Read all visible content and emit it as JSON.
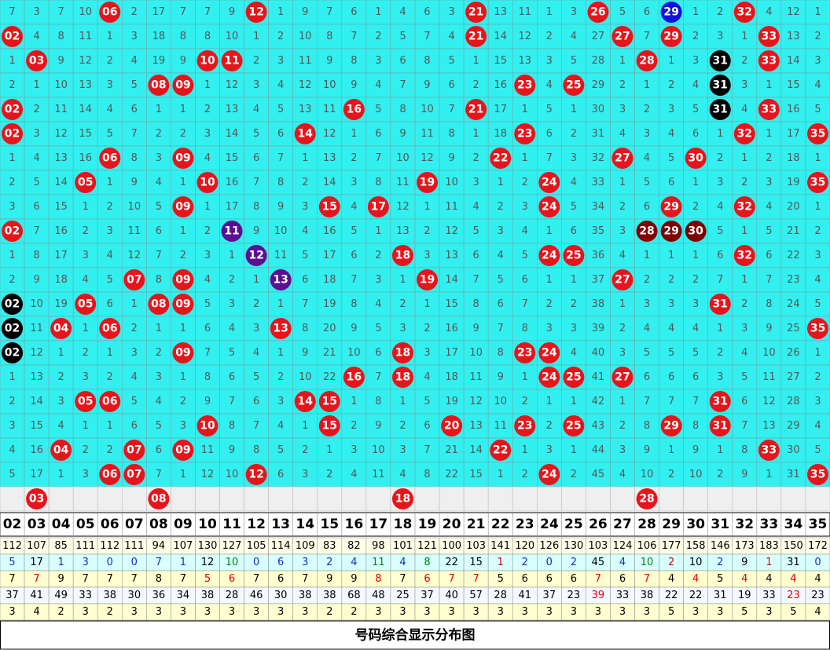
{
  "grid": {
    "rows": [
      [
        "7",
        "3",
        "7",
        "10",
        "06",
        "2",
        "17",
        "7",
        "7",
        "9",
        "12",
        "1",
        "9",
        "7",
        "6",
        "1",
        "4",
        "6",
        "3",
        "21",
        "13",
        "11",
        "1",
        "3",
        "26",
        "5",
        "6",
        {
          "text": "29",
          "color": "#1010e0"
        },
        "1",
        "2",
        "32",
        "4",
        "12",
        "1"
      ],
      [
        "02",
        "4",
        "8",
        "11",
        "1",
        "3",
        "18",
        "8",
        "8",
        "10",
        "1",
        "2",
        "10",
        "8",
        "7",
        "2",
        "5",
        "7",
        "4",
        "21",
        "14",
        "12",
        "2",
        "4",
        "27",
        "27",
        "7",
        "29",
        "2",
        "3",
        "1",
        "33",
        "13",
        "2"
      ],
      [
        "1",
        "03",
        "9",
        "12",
        "2",
        "4",
        "19",
        "9",
        "10",
        "11",
        "2",
        "3",
        "11",
        "9",
        "8",
        "3",
        "6",
        "8",
        "5",
        "1",
        "15",
        "13",
        "3",
        "5",
        "28",
        "1",
        "28",
        "1",
        "3",
        {
          "text": "31",
          "color": "#000000"
        },
        "2",
        "33",
        "14",
        "3"
      ],
      [
        "2",
        "1",
        "10",
        "13",
        "3",
        "5",
        "08",
        "09",
        "1",
        "12",
        "3",
        "4",
        "12",
        "10",
        "9",
        "4",
        "7",
        "9",
        "6",
        "2",
        "16",
        "23",
        "4",
        "25",
        "29",
        "2",
        "1",
        "2",
        "4",
        {
          "text": "31",
          "color": "#000000"
        },
        "3",
        "1",
        "15",
        "4"
      ],
      [
        "02",
        "2",
        "11",
        "14",
        "4",
        "6",
        "1",
        "1",
        "2",
        "13",
        "4",
        "5",
        "13",
        "11",
        "16",
        "5",
        "8",
        "10",
        "7",
        "21",
        "17",
        "1",
        "5",
        "1",
        "30",
        "3",
        "2",
        "3",
        "5",
        {
          "text": "31",
          "color": "#000000"
        },
        "4",
        "33",
        "16",
        "5"
      ],
      [
        "02",
        "3",
        "12",
        "15",
        "5",
        "7",
        "2",
        "2",
        "3",
        "14",
        "5",
        "6",
        "14",
        "12",
        "1",
        "6",
        "9",
        "11",
        "8",
        "1",
        "18",
        "23",
        "6",
        "2",
        "31",
        "4",
        "3",
        "4",
        "6",
        "1",
        "32",
        "1",
        "17",
        "35"
      ],
      [
        "1",
        "4",
        "13",
        "16",
        "06",
        "8",
        "3",
        "09",
        "4",
        "15",
        "6",
        "7",
        "1",
        "13",
        "2",
        "7",
        "10",
        "12",
        "9",
        "2",
        "22",
        "1",
        "7",
        "3",
        "32",
        "27",
        "4",
        "5",
        "30",
        "2",
        "1",
        "2",
        "18",
        "1"
      ],
      [
        "2",
        "5",
        "14",
        "05",
        "1",
        "9",
        "4",
        "1",
        "10",
        "16",
        "7",
        "8",
        "2",
        "14",
        "3",
        "8",
        "11",
        "19",
        "10",
        "3",
        "1",
        "2",
        "24",
        "4",
        "33",
        "1",
        "5",
        "6",
        "1",
        "3",
        "2",
        "3",
        "19",
        "35"
      ],
      [
        "3",
        "6",
        "15",
        "1",
        "2",
        "10",
        "5",
        "09",
        "1",
        "17",
        "8",
        "9",
        "3",
        "15",
        "4",
        "17",
        "12",
        "1",
        "11",
        "4",
        "2",
        "3",
        "24",
        "5",
        "34",
        "2",
        "6",
        "29",
        "2",
        "4",
        "32",
        "4",
        "20",
        "1"
      ],
      [
        "02",
        "7",
        "16",
        "2",
        "3",
        "11",
        "6",
        "1",
        "2",
        {
          "text": "11",
          "color": "#5a1090"
        },
        "9",
        "10",
        "4",
        "16",
        "5",
        "1",
        "13",
        "2",
        "12",
        "5",
        "3",
        "4",
        "1",
        "6",
        "35",
        "3",
        {
          "text": "28",
          "color": "#800000"
        },
        {
          "text": "29",
          "color": "#800000"
        },
        {
          "text": "30",
          "color": "#800000"
        },
        "5",
        "1",
        "5",
        "21",
        "2"
      ],
      [
        "1",
        "8",
        "17",
        "3",
        "4",
        "12",
        "7",
        "2",
        "3",
        "1",
        {
          "text": "12",
          "color": "#5a1090"
        },
        "11",
        "5",
        "17",
        "6",
        "2",
        "18",
        "3",
        "13",
        "6",
        "4",
        "5",
        "24",
        "25",
        "36",
        "4",
        "1",
        "1",
        "1",
        "6",
        "32",
        "6",
        "22",
        "3"
      ],
      [
        "2",
        "9",
        "18",
        "4",
        "5",
        "07",
        "8",
        "09",
        "4",
        "2",
        "1",
        {
          "text": "13",
          "color": "#5a1090"
        },
        "6",
        "18",
        "7",
        "3",
        "1",
        "19",
        "14",
        "7",
        "5",
        "6",
        "1",
        "1",
        "37",
        "27",
        "2",
        "2",
        "2",
        "7",
        "1",
        "7",
        "23",
        "4"
      ],
      [
        {
          "text": "02",
          "color": "#000000"
        },
        "10",
        "19",
        "05",
        "6",
        "1",
        "08",
        "09",
        "5",
        "3",
        "2",
        "1",
        "7",
        "19",
        "8",
        "4",
        "2",
        "1",
        "15",
        "8",
        "6",
        "7",
        "2",
        "2",
        "38",
        "1",
        "3",
        "3",
        "3",
        "31",
        "2",
        "8",
        "24",
        "5"
      ],
      [
        {
          "text": "02",
          "color": "#000000"
        },
        "11",
        "04",
        "1",
        "06",
        "2",
        "1",
        "1",
        "6",
        "4",
        "3",
        "13",
        "8",
        "20",
        "9",
        "5",
        "3",
        "2",
        "16",
        "9",
        "7",
        "8",
        "3",
        "3",
        "39",
        "2",
        "4",
        "4",
        "4",
        "1",
        "3",
        "9",
        "25",
        "35"
      ],
      [
        {
          "text": "02",
          "color": "#000000"
        },
        "12",
        "1",
        "2",
        "1",
        "3",
        "2",
        "09",
        "7",
        "5",
        "4",
        "1",
        "9",
        "21",
        "10",
        "6",
        "18",
        "3",
        "17",
        "10",
        "8",
        "23",
        "24",
        "4",
        "40",
        "3",
        "5",
        "5",
        "5",
        "2",
        "4",
        "10",
        "26",
        "1"
      ],
      [
        "1",
        "13",
        "2",
        "3",
        "2",
        "4",
        "3",
        "1",
        "8",
        "6",
        "5",
        "2",
        "10",
        "22",
        "16",
        "7",
        "18",
        "4",
        "18",
        "11",
        "9",
        "1",
        "24",
        "25",
        "41",
        "27",
        "6",
        "6",
        "6",
        "3",
        "5",
        "11",
        "27",
        "2"
      ],
      [
        "2",
        "14",
        "3",
        "05",
        "06",
        "5",
        "4",
        "2",
        "9",
        "7",
        "6",
        "3",
        "14",
        "15",
        "1",
        "8",
        "1",
        "5",
        "19",
        "12",
        "10",
        "2",
        "1",
        "1",
        "42",
        "1",
        "7",
        "7",
        "7",
        "31",
        "6",
        "12",
        "28",
        "3"
      ],
      [
        "3",
        "15",
        "4",
        "1",
        "1",
        "6",
        "5",
        "3",
        "10",
        "8",
        "7",
        "4",
        "1",
        "15",
        "2",
        "9",
        "2",
        "6",
        "20",
        "13",
        "11",
        "23",
        "2",
        "25",
        "43",
        "2",
        "8",
        "29",
        "8",
        "31",
        "7",
        "13",
        "29",
        "4"
      ],
      [
        "4",
        "16",
        "04",
        "2",
        "2",
        "07",
        "6",
        "09",
        "11",
        "9",
        "8",
        "5",
        "2",
        "1",
        "3",
        "10",
        "3",
        "7",
        "21",
        "14",
        "22",
        "1",
        "3",
        "1",
        "44",
        "3",
        "9",
        "1",
        "9",
        "1",
        "8",
        "33",
        "30",
        "5"
      ],
      [
        "5",
        "17",
        "1",
        "3",
        "06",
        "07",
        "7",
        "1",
        "12",
        "10",
        "12",
        "6",
        "3",
        "2",
        "4",
        "11",
        "4",
        "8",
        "22",
        "15",
        "1",
        "2",
        "24",
        "2",
        "45",
        "4",
        "10",
        "2",
        "10",
        "2",
        "9",
        "1",
        "31",
        "35"
      ]
    ],
    "cell_color": "#33f0f0",
    "ball_color": "#e8141b"
  },
  "draw_row": [
    "03",
    "08",
    "18",
    "28"
  ],
  "header": [
    "02",
    "03",
    "04",
    "05",
    "06",
    "07",
    "08",
    "09",
    "10",
    "11",
    "12",
    "13",
    "14",
    "15",
    "16",
    "17",
    "18",
    "19",
    "20",
    "21",
    "22",
    "23",
    "24",
    "25",
    "26",
    "27",
    "28",
    "29",
    "30",
    "31",
    "32",
    "33",
    "34",
    "35"
  ],
  "stats": [
    {
      "background": "#ffffe8",
      "color": "#000000",
      "cells": [
        "112",
        "107",
        "85",
        "111",
        "112",
        "111",
        "94",
        "107",
        "130",
        "127",
        "105",
        "114",
        "109",
        "83",
        "82",
        "98",
        "101",
        "121",
        "100",
        "103",
        "141",
        "120",
        "126",
        "130",
        "103",
        "124",
        "106",
        "177",
        "158",
        "146",
        "173",
        "183",
        "150",
        "172"
      ]
    },
    {
      "background": "#d8ffff",
      "color": "#1030c0",
      "cells": [
        "5",
        {
          "text": "17",
          "color": "#000000"
        },
        "1",
        "3",
        "0",
        "0",
        "7",
        "1",
        {
          "text": "12",
          "color": "#000000"
        },
        {
          "text": "10",
          "color": "#008800"
        },
        "0",
        "6",
        "3",
        "2",
        "4",
        {
          "text": "11",
          "color": "#008800"
        },
        "4",
        {
          "text": "8",
          "color": "#008800"
        },
        {
          "text": "22",
          "color": "#000000"
        },
        {
          "text": "15",
          "color": "#000000"
        },
        {
          "text": "1",
          "color": "#e00000"
        },
        "2",
        "0",
        "2",
        {
          "text": "45",
          "color": "#000000"
        },
        "4",
        {
          "text": "10",
          "color": "#008800"
        },
        {
          "text": "2",
          "color": "#e00000"
        },
        {
          "text": "10",
          "color": "#000000"
        },
        "2",
        {
          "text": "9",
          "color": "#000000"
        },
        {
          "text": "1",
          "color": "#e00000"
        },
        {
          "text": "31",
          "color": "#000000"
        },
        "0"
      ]
    },
    {
      "background": "#ffffd0",
      "color": "#000000",
      "cells": [
        "7",
        {
          "text": "7",
          "color": "#e00000"
        },
        "9",
        "7",
        "7",
        "7",
        "8",
        "7",
        {
          "text": "5",
          "color": "#e00000"
        },
        {
          "text": "6",
          "color": "#e00000"
        },
        "7",
        "6",
        "7",
        "9",
        "9",
        {
          "text": "8",
          "color": "#e00000"
        },
        "7",
        {
          "text": "6",
          "color": "#e00000"
        },
        {
          "text": "7",
          "color": "#e00000"
        },
        {
          "text": "7",
          "color": "#e00000"
        },
        "5",
        "6",
        "6",
        "6",
        {
          "text": "7",
          "color": "#e00000"
        },
        "6",
        {
          "text": "7",
          "color": "#e00000"
        },
        "4",
        {
          "text": "4",
          "color": "#e00000"
        },
        "5",
        {
          "text": "4",
          "color": "#e00000"
        },
        "4",
        {
          "text": "4",
          "color": "#e00000"
        },
        "4"
      ]
    },
    {
      "background": "#f4f8ff",
      "color": "#000000",
      "cells": [
        "37",
        "41",
        "49",
        "33",
        "38",
        "30",
        "36",
        "34",
        "38",
        "28",
        "46",
        "30",
        "38",
        "38",
        "68",
        "48",
        "25",
        "37",
        "40",
        "57",
        "28",
        "41",
        "37",
        "23",
        {
          "text": "39",
          "color": "#e00000"
        },
        "33",
        "38",
        "22",
        "22",
        "31",
        "19",
        "33",
        {
          "text": "23",
          "color": "#e00000"
        },
        "23"
      ]
    },
    {
      "background": "#ffffd0",
      "color": "#000000",
      "cells": [
        "3",
        "4",
        "2",
        "3",
        "2",
        "3",
        "3",
        "3",
        "3",
        "3",
        "3",
        "3",
        "3",
        "2",
        "2",
        "3",
        "3",
        "3",
        "3",
        "3",
        "3",
        "3",
        "3",
        "3",
        "3",
        "3",
        "3",
        "5",
        "3",
        "3",
        "5",
        "3",
        "5",
        "4"
      ]
    }
  ],
  "title": "号码综合显示分布图"
}
